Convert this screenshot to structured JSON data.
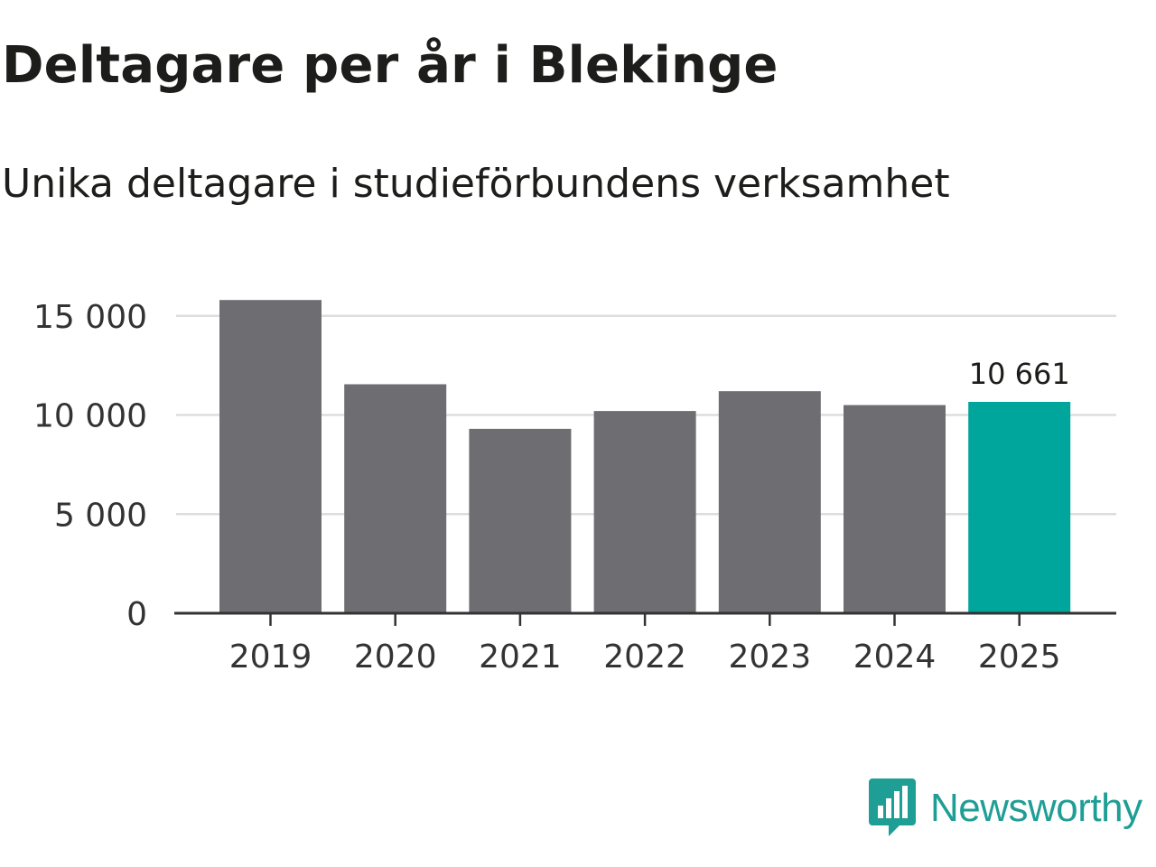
{
  "chart_data": {
    "type": "bar",
    "title": "Deltagare per år i Blekinge",
    "subtitle": "Unika deltagare i studieförbundens verksamhet",
    "categories": [
      "2019",
      "2020",
      "2021",
      "2022",
      "2023",
      "2024",
      "2025"
    ],
    "values": [
      15800,
      11550,
      9300,
      10200,
      11200,
      10500,
      10661
    ],
    "ylim": [
      0,
      16000
    ],
    "yticks": [
      0,
      5000,
      10000,
      15000
    ],
    "ytick_labels": [
      "0",
      "5 000",
      "10 000",
      "15 000"
    ],
    "grid": true,
    "highlight_index": 6,
    "highlight_label": "10 661",
    "xlabel": "",
    "ylabel": ""
  },
  "colors": {
    "bar": "#6e6d72",
    "highlight": "#00a59b",
    "grid": "#dddddd",
    "axis": "#333333",
    "brand": "#1f9e95"
  },
  "branding": {
    "name": "Newsworthy",
    "icon": "newsworthy-logo-icon"
  }
}
